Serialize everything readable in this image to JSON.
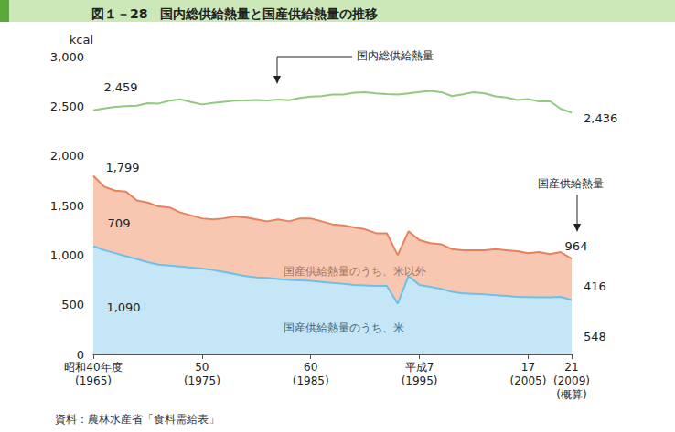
{
  "chart_data": {
    "type": "line",
    "title": "図１－28　国内総供給熱量と国産供給熱量の推移",
    "y_label": "kcal",
    "source": "資料：農林水産省「食料需給表」",
    "categories": [
      "昭和40年度\n(1965)",
      null,
      null,
      null,
      null,
      null,
      null,
      null,
      null,
      null,
      "50\n(1975)",
      null,
      null,
      null,
      null,
      null,
      null,
      null,
      null,
      null,
      "60\n(1985)",
      null,
      null,
      null,
      null,
      null,
      null,
      null,
      null,
      null,
      "平成7\n(1995)",
      null,
      null,
      null,
      null,
      null,
      null,
      null,
      null,
      null,
      "17\n(2005)",
      null,
      null,
      null,
      "21\n(2009)\n(概算)"
    ],
    "ylim": [
      0,
      3000
    ],
    "yticks": [
      0,
      500,
      {
        "value": 1000,
        "label": "1,000"
      },
      {
        "value": 1500,
        "label": "1,500"
      },
      {
        "value": 2000,
        "label": "2,000"
      },
      {
        "value": 2500,
        "label": "2,500"
      },
      {
        "value": 3000,
        "label": "3,000"
      }
    ],
    "grid": false,
    "data_labels": true,
    "series": [
      {
        "name": "国産供給熱量のうち、米",
        "type": "area",
        "stacked": true,
        "color": "#6ec0e8",
        "values": [
          1090,
          1050,
          1020,
          990,
          960,
          930,
          905,
          895,
          885,
          875,
          865,
          850,
          830,
          810,
          790,
          775,
          770,
          760,
          750,
          745,
          740,
          730,
          720,
          710,
          700,
          695,
          690,
          690,
          510,
          790,
          700,
          680,
          660,
          630,
          615,
          610,
          605,
          595,
          590,
          580,
          578,
          575,
          575,
          580,
          548
        ],
        "value_labels": [
          "1,090",
          null,
          null,
          null,
          null,
          null,
          null,
          null,
          null,
          null,
          null,
          null,
          null,
          null,
          null,
          null,
          null,
          null,
          null,
          null,
          null,
          null,
          null,
          null,
          null,
          null,
          null,
          null,
          null,
          null,
          null,
          null,
          null,
          null,
          null,
          null,
          null,
          null,
          null,
          null,
          null,
          null,
          null,
          null,
          "548"
        ]
      },
      {
        "name": "国産供給熱量のうち、米以外",
        "type": "area",
        "stacked": true,
        "color": "#f4a27f",
        "values": [
          709,
          640,
          630,
          650,
          590,
          600,
          585,
          585,
          545,
          525,
          505,
          510,
          540,
          580,
          590,
          585,
          570,
          600,
          590,
          625,
          630,
          610,
          590,
          590,
          580,
          565,
          530,
          530,
          490,
          450,
          450,
          440,
          450,
          430,
          435,
          440,
          445,
          465,
          460,
          460,
          442,
          455,
          435,
          450,
          416
        ],
        "value_labels": [
          "709",
          null,
          null,
          null,
          null,
          null,
          null,
          null,
          null,
          null,
          null,
          null,
          null,
          null,
          null,
          null,
          null,
          null,
          null,
          null,
          null,
          null,
          null,
          null,
          null,
          null,
          null,
          null,
          null,
          null,
          null,
          null,
          null,
          null,
          null,
          null,
          null,
          null,
          null,
          null,
          null,
          null,
          null,
          null,
          "416"
        ]
      },
      {
        "name": "国産供給熱量",
        "type": "line",
        "color": "#e8815a",
        "values": [
          1799,
          1690,
          1650,
          1640,
          1550,
          1530,
          1490,
          1480,
          1430,
          1400,
          1370,
          1360,
          1370,
          1390,
          1380,
          1360,
          1340,
          1360,
          1340,
          1370,
          1370,
          1340,
          1310,
          1300,
          1280,
          1260,
          1220,
          1220,
          1000,
          1240,
          1150,
          1120,
          1110,
          1060,
          1050,
          1050,
          1050,
          1060,
          1050,
          1040,
          1020,
          1030,
          1010,
          1030,
          964
        ],
        "value_labels": [
          "1,799",
          null,
          null,
          null,
          null,
          null,
          null,
          null,
          null,
          null,
          null,
          null,
          null,
          null,
          null,
          null,
          null,
          null,
          null,
          null,
          null,
          null,
          null,
          null,
          null,
          null,
          null,
          null,
          null,
          null,
          null,
          null,
          null,
          null,
          null,
          null,
          null,
          null,
          null,
          null,
          null,
          null,
          null,
          null,
          "964"
        ]
      },
      {
        "name": "国内総供給熱量",
        "type": "line",
        "color": "#90c97f",
        "values": [
          2459,
          2478,
          2494,
          2500,
          2505,
          2530,
          2527,
          2556,
          2570,
          2542,
          2518,
          2533,
          2545,
          2557,
          2559,
          2563,
          2559,
          2568,
          2560,
          2583,
          2597,
          2601,
          2619,
          2619,
          2637,
          2640,
          2630,
          2623,
          2618,
          2630,
          2644,
          2654,
          2642,
          2602,
          2621,
          2642,
          2630,
          2599,
          2588,
          2563,
          2573,
          2550,
          2551,
          2473,
          2436
        ],
        "value_labels": [
          "2,459",
          null,
          null,
          null,
          null,
          null,
          null,
          null,
          null,
          null,
          null,
          null,
          null,
          null,
          null,
          null,
          null,
          null,
          null,
          null,
          null,
          null,
          null,
          null,
          null,
          null,
          null,
          null,
          null,
          null,
          null,
          null,
          null,
          null,
          null,
          null,
          null,
          null,
          null,
          null,
          null,
          null,
          null,
          null,
          "2,436"
        ]
      }
    ]
  }
}
